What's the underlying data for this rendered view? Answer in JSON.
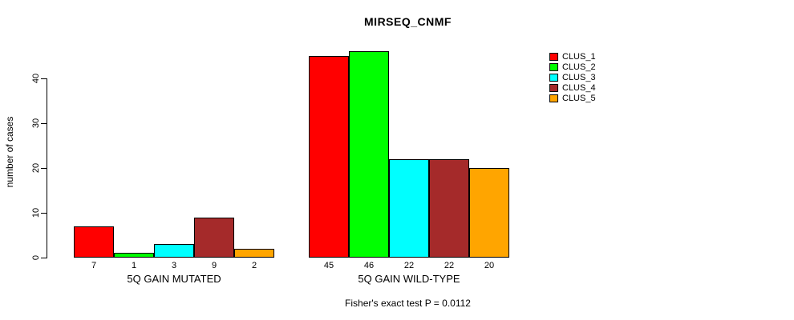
{
  "chart_data": {
    "type": "bar",
    "title": "MIRSEQ_CNMF",
    "ylabel": "number of cases",
    "xlabel": "",
    "ylim": [
      0,
      46
    ],
    "yticks": [
      0,
      10,
      20,
      30,
      40
    ],
    "categories": [
      "5Q GAIN MUTATED",
      "5Q GAIN WILD-TYPE"
    ],
    "series": [
      {
        "name": "CLUS_1",
        "color": "#FF0000",
        "values": [
          7,
          45
        ]
      },
      {
        "name": "CLUS_2",
        "color": "#00FF00",
        "values": [
          1,
          46
        ]
      },
      {
        "name": "CLUS_3",
        "color": "#00FFFF",
        "values": [
          3,
          22
        ]
      },
      {
        "name": "CLUS_4",
        "color": "#A52A2A",
        "values": [
          9,
          22
        ]
      },
      {
        "name": "CLUS_5",
        "color": "#FFA500",
        "values": [
          2,
          20
        ]
      }
    ],
    "bar_value_labels": [
      [
        "7",
        "1",
        "3",
        "9",
        "2"
      ],
      [
        "45",
        "46",
        "22",
        "22",
        "20"
      ]
    ],
    "legend_position": "right",
    "grid": false,
    "background": "#FFFFFF",
    "annotation": "Fisher's exact test P = 0.0112"
  }
}
